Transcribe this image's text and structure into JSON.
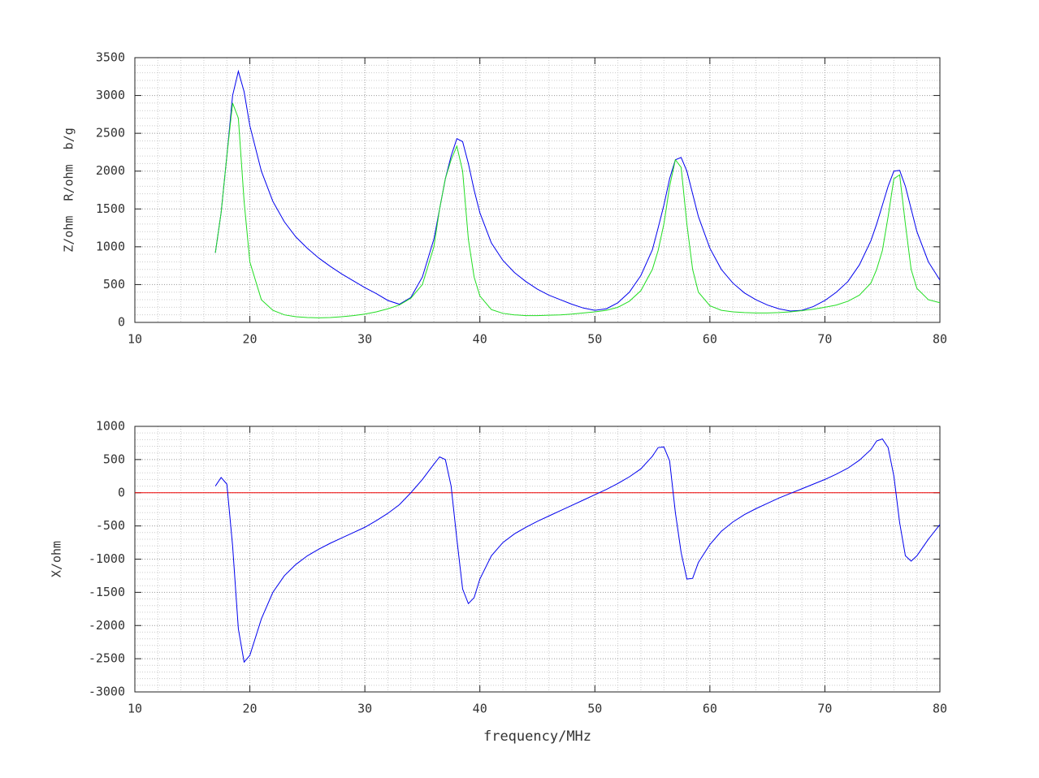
{
  "chart_data": [
    {
      "type": "line",
      "y_label": "Z/ohm  R/ohm  b/g",
      "x": [
        17,
        17.5,
        18,
        18.5,
        19,
        19.5,
        20,
        21,
        22,
        23,
        24,
        25,
        26,
        27,
        28,
        29,
        30,
        31,
        32,
        33,
        34,
        35,
        36,
        36.5,
        37,
        37.5,
        38,
        38.5,
        39,
        39.5,
        40,
        41,
        42,
        43,
        44,
        45,
        46,
        47,
        48,
        49,
        50,
        51,
        52,
        53,
        54,
        55,
        55.5,
        56,
        56.5,
        57,
        57.5,
        58,
        58.5,
        59,
        60,
        61,
        62,
        63,
        64,
        65,
        66,
        67,
        68,
        69,
        70,
        71,
        72,
        73,
        74,
        74.5,
        75,
        75.5,
        76,
        76.5,
        77,
        77.5,
        78,
        79,
        80
      ],
      "series": [
        {
          "color": "#0000ee",
          "values": [
            920,
            1450,
            2200,
            3000,
            3320,
            3050,
            2600,
            2000,
            1600,
            1330,
            1130,
            980,
            850,
            740,
            640,
            550,
            460,
            380,
            290,
            240,
            330,
            600,
            1100,
            1500,
            1900,
            2200,
            2430,
            2390,
            2100,
            1750,
            1450,
            1050,
            820,
            660,
            540,
            440,
            360,
            300,
            240,
            190,
            160,
            180,
            260,
            400,
            620,
            960,
            1250,
            1550,
            1900,
            2150,
            2180,
            2000,
            1700,
            1400,
            980,
            700,
            520,
            390,
            300,
            230,
            180,
            150,
            160,
            210,
            290,
            400,
            540,
            760,
            1080,
            1300,
            1550,
            1800,
            2000,
            2010,
            1800,
            1500,
            1200,
            800,
            560
          ]
        },
        {
          "color": "#22dd22",
          "values": [
            920,
            1450,
            2200,
            2900,
            2700,
            1600,
            800,
            300,
            160,
            100,
            75,
            65,
            60,
            65,
            75,
            90,
            110,
            140,
            180,
            230,
            320,
            500,
            1000,
            1500,
            1900,
            2150,
            2330,
            2000,
            1100,
            600,
            350,
            170,
            120,
            100,
            90,
            90,
            95,
            100,
            110,
            125,
            140,
            160,
            200,
            280,
            420,
            700,
            950,
            1300,
            1800,
            2150,
            2050,
            1300,
            700,
            400,
            220,
            160,
            140,
            130,
            125,
            125,
            130,
            140,
            155,
            175,
            200,
            230,
            280,
            360,
            520,
            700,
            950,
            1400,
            1900,
            1950,
            1300,
            700,
            450,
            300,
            260
          ]
        }
      ],
      "xlim": [
        10,
        80
      ],
      "xticks": [
        10,
        20,
        30,
        40,
        50,
        60,
        70,
        80
      ],
      "ylim": [
        0,
        3500
      ],
      "yticks": [
        0,
        500,
        1000,
        1500,
        2000,
        2500,
        3000,
        3500
      ],
      "grid": true,
      "minor_divisions": 5
    },
    {
      "type": "line",
      "y_label": "X/ohm",
      "x_label": "frequency/MHz",
      "x": [
        17,
        17.5,
        18,
        18.5,
        19,
        19.5,
        20,
        21,
        22,
        23,
        24,
        25,
        26,
        27,
        28,
        29,
        30,
        31,
        32,
        33,
        34,
        35,
        36,
        36.5,
        37,
        37.5,
        38,
        38.5,
        39,
        39.5,
        40,
        41,
        42,
        43,
        44,
        45,
        46,
        47,
        48,
        49,
        50,
        51,
        52,
        53,
        54,
        55,
        55.5,
        56,
        56.5,
        57,
        57.5,
        58,
        58.5,
        59,
        60,
        61,
        62,
        63,
        64,
        65,
        66,
        67,
        68,
        69,
        70,
        71,
        72,
        73,
        74,
        74.5,
        75,
        75.5,
        76,
        76.5,
        77,
        77.5,
        78,
        79,
        80
      ],
      "series": [
        {
          "color": "#ee0000",
          "x": [
            10,
            80
          ],
          "values": [
            0,
            0
          ]
        },
        {
          "color": "#0000ee",
          "values": [
            100,
            230,
            130,
            -800,
            -2050,
            -2550,
            -2450,
            -1900,
            -1500,
            -1250,
            -1080,
            -950,
            -850,
            -760,
            -680,
            -600,
            -520,
            -420,
            -310,
            -180,
            0,
            200,
            430,
            540,
            500,
            100,
            -700,
            -1450,
            -1670,
            -1580,
            -1300,
            -950,
            -750,
            -620,
            -520,
            -430,
            -350,
            -270,
            -190,
            -110,
            -30,
            50,
            140,
            240,
            360,
            550,
            680,
            690,
            480,
            -300,
            -900,
            -1300,
            -1290,
            -1050,
            -780,
            -580,
            -440,
            -330,
            -240,
            -160,
            -80,
            -10,
            60,
            130,
            200,
            280,
            370,
            490,
            650,
            780,
            810,
            680,
            250,
            -450,
            -950,
            -1030,
            -950,
            -700,
            -480
          ]
        }
      ],
      "xlim": [
        10,
        80
      ],
      "xticks": [
        10,
        20,
        30,
        40,
        50,
        60,
        70,
        80
      ],
      "ylim": [
        -3000,
        1000
      ],
      "yticks": [
        -3000,
        -2500,
        -2000,
        -1500,
        -1000,
        -500,
        0,
        500,
        1000
      ],
      "grid": true,
      "minor_divisions": 5
    }
  ]
}
